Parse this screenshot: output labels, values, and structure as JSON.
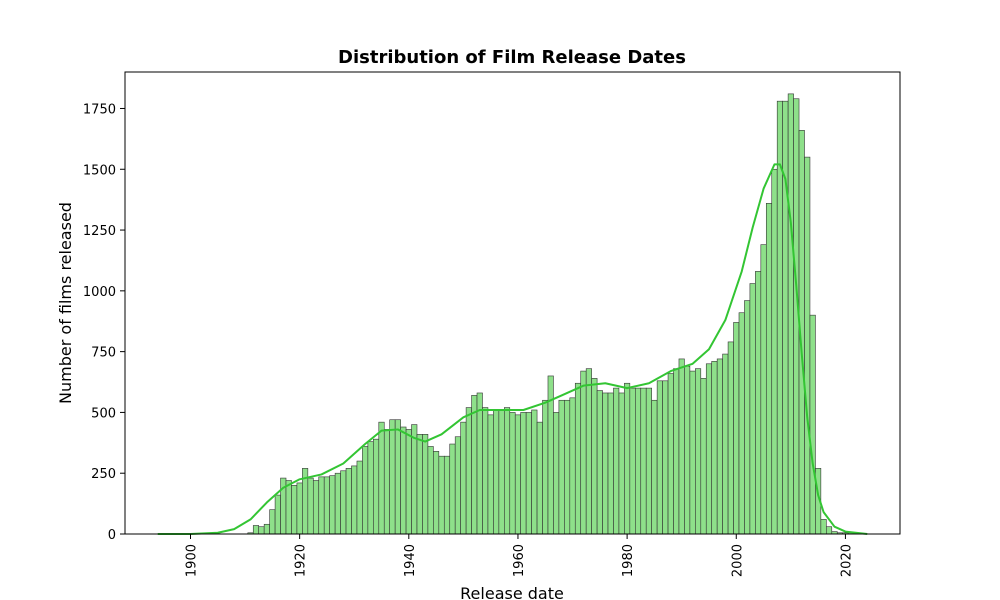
{
  "chart_data": {
    "type": "bar",
    "title": "Distribution of Film Release Dates",
    "xlabel": "Release date",
    "ylabel": "Number of films released",
    "xlim": [
      1888,
      2030
    ],
    "ylim": [
      0,
      1900
    ],
    "xticks": [
      1900,
      1920,
      1940,
      1960,
      1980,
      2000,
      2020
    ],
    "yticks": [
      0,
      250,
      500,
      750,
      1000,
      1250,
      1500,
      1750
    ],
    "bin_start": 1894.5,
    "bin_width": 1,
    "bar_fill": "#8ee08a",
    "bar_edge": "#333333",
    "kde_color": "#33c533",
    "values": [
      0,
      0,
      0,
      0,
      0,
      0,
      0,
      0,
      0,
      0,
      0,
      0,
      0,
      0,
      0,
      0,
      5,
      35,
      30,
      40,
      100,
      160,
      230,
      220,
      200,
      210,
      270,
      230,
      220,
      235,
      235,
      240,
      250,
      260,
      270,
      280,
      300,
      360,
      380,
      390,
      460,
      430,
      470,
      470,
      440,
      430,
      450,
      410,
      410,
      360,
      340,
      320,
      320,
      370,
      400,
      460,
      520,
      570,
      580,
      520,
      490,
      510,
      510,
      520,
      500,
      490,
      500,
      500,
      510,
      460,
      550,
      650,
      500,
      550,
      550,
      560,
      620,
      670,
      680,
      640,
      590,
      580,
      580,
      600,
      580,
      620,
      600,
      600,
      600,
      600,
      550,
      630,
      630,
      660,
      680,
      720,
      690,
      670,
      680,
      640,
      700,
      710,
      720,
      740,
      790,
      870,
      910,
      960,
      1030,
      1080,
      1190,
      1360,
      1500,
      1780,
      1780,
      1810,
      1790,
      1660,
      1550,
      900,
      270,
      60,
      30,
      10,
      5,
      5,
      5
    ],
    "kde": {
      "x": [
        1894,
        1900,
        1905,
        1908,
        1911,
        1914,
        1917,
        1920,
        1924,
        1928,
        1932,
        1935,
        1938,
        1941,
        1943,
        1946,
        1950,
        1953,
        1957,
        1961,
        1965,
        1968,
        1972,
        1976,
        1980,
        1984,
        1988,
        1992,
        1995,
        1998,
        2001,
        2003,
        2005,
        2007,
        2008,
        2009,
        2010,
        2011,
        2012,
        2013,
        2014,
        2015,
        2016,
        2018,
        2020,
        2024
      ],
      "y": [
        0,
        0,
        5,
        20,
        60,
        130,
        190,
        225,
        245,
        290,
        370,
        425,
        430,
        395,
        380,
        410,
        480,
        510,
        510,
        510,
        540,
        570,
        610,
        620,
        600,
        620,
        670,
        700,
        760,
        880,
        1080,
        1260,
        1420,
        1520,
        1520,
        1460,
        1280,
        1020,
        740,
        480,
        290,
        160,
        90,
        30,
        10,
        0
      ]
    }
  }
}
